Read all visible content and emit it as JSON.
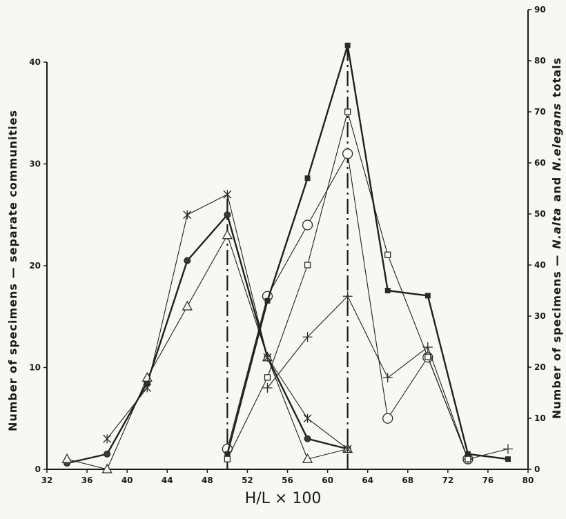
{
  "chart_data": {
    "type": "line",
    "xlabel": "H/L × 100",
    "ylabel_left": "Number of specimens — separate communities",
    "ylabel_right_parts": [
      "Number of specimens —",
      "N.alta",
      "and",
      "N.elegans",
      "totals"
    ],
    "xlim": [
      32,
      80
    ],
    "ylim_left": [
      0,
      42
    ],
    "ylim_right": [
      0,
      90
    ],
    "x_ticks": [
      "32",
      "36",
      "40",
      "44",
      "48",
      "52",
      "56",
      "60",
      "64",
      "68",
      "72",
      "76",
      "80"
    ],
    "y_left_ticks": [
      "0",
      "10",
      "20",
      "30",
      "40"
    ],
    "y_right_ticks": [
      "0",
      "10",
      "20",
      "30",
      "40",
      "50",
      "60",
      "70",
      "80",
      "90"
    ],
    "vertical_lines_x": [
      50,
      62
    ],
    "series": [
      {
        "marker": "filled-circle",
        "axis": "left",
        "stroke": "thick",
        "x": [
          34,
          38,
          42,
          46,
          50,
          54,
          58,
          62
        ],
        "y": [
          0.6,
          1.5,
          8.5,
          20.5,
          25,
          11,
          3,
          2
        ]
      },
      {
        "marker": "triangle",
        "axis": "left",
        "stroke": "thin",
        "x": [
          34,
          38,
          42,
          46,
          50,
          54,
          58,
          62
        ],
        "y": [
          1,
          0,
          9,
          16,
          23,
          11,
          1,
          2
        ]
      },
      {
        "marker": "star",
        "axis": "left",
        "stroke": "thin",
        "x": [
          38,
          42,
          46,
          50,
          54,
          58,
          62
        ],
        "y": [
          3,
          8,
          25,
          27,
          11,
          5,
          2
        ]
      },
      {
        "marker": "open-circle",
        "axis": "left",
        "stroke": "thin",
        "x": [
          50,
          54,
          58,
          62,
          66,
          70,
          74
        ],
        "y": [
          2,
          17,
          24,
          31,
          5,
          11,
          1
        ]
      },
      {
        "marker": "cross",
        "axis": "left",
        "stroke": "thin",
        "x": [
          54,
          58,
          62,
          66,
          70,
          74,
          78
        ],
        "y": [
          8,
          13,
          17,
          9,
          12,
          1,
          2
        ]
      },
      {
        "marker": "filled-square",
        "axis": "right",
        "stroke": "thick",
        "x": [
          50,
          54,
          58,
          62,
          66,
          70,
          74,
          78
        ],
        "y": [
          3,
          33,
          57,
          83,
          35,
          34,
          3,
          2
        ]
      },
      {
        "marker": "open-square",
        "axis": "right",
        "stroke": "thin",
        "x": [
          50,
          54,
          58,
          62,
          66,
          70,
          74
        ],
        "y": [
          2,
          18,
          40,
          70,
          42,
          22,
          2
        ]
      }
    ]
  }
}
